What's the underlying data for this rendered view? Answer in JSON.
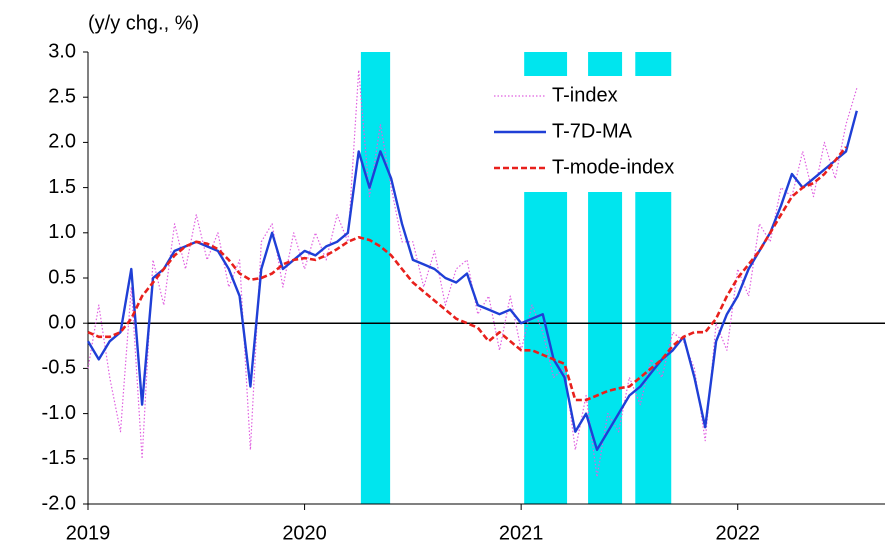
{
  "chart_data": {
    "type": "line",
    "y_axis_label": "(y/y chg., %)",
    "x": [
      2019.0,
      2019.05,
      2019.1,
      2019.15,
      2019.2,
      2019.25,
      2019.3,
      2019.35,
      2019.4,
      2019.45,
      2019.5,
      2019.55,
      2019.6,
      2019.65,
      2019.7,
      2019.75,
      2019.8,
      2019.85,
      2019.9,
      2019.95,
      2020.0,
      2020.05,
      2020.1,
      2020.15,
      2020.2,
      2020.25,
      2020.3,
      2020.35,
      2020.4,
      2020.45,
      2020.5,
      2020.55,
      2020.6,
      2020.65,
      2020.7,
      2020.75,
      2020.8,
      2020.85,
      2020.9,
      2020.95,
      2021.0,
      2021.05,
      2021.1,
      2021.15,
      2021.2,
      2021.25,
      2021.3,
      2021.35,
      2021.4,
      2021.45,
      2021.5,
      2021.55,
      2021.6,
      2021.65,
      2021.7,
      2021.75,
      2021.8,
      2021.85,
      2021.9,
      2021.95,
      2022.0,
      2022.05,
      2022.1,
      2022.15,
      2022.2,
      2022.25,
      2022.3,
      2022.35,
      2022.4,
      2022.45,
      2022.5,
      2022.55
    ],
    "series": [
      {
        "name": "T-index",
        "color": "#e060e0",
        "style": "dotted",
        "values": [
          -0.5,
          0.2,
          -0.6,
          -1.2,
          0.4,
          -1.5,
          0.7,
          0.2,
          1.1,
          0.6,
          1.2,
          0.7,
          1.0,
          0.4,
          0.7,
          -1.4,
          0.9,
          1.1,
          0.4,
          1.0,
          0.6,
          1.0,
          0.7,
          1.2,
          0.9,
          2.8,
          1.4,
          2.2,
          1.5,
          0.9,
          0.9,
          0.4,
          0.8,
          0.2,
          0.6,
          0.7,
          0.1,
          0.3,
          -0.3,
          0.3,
          -0.3,
          0.2,
          -0.1,
          -0.6,
          -0.5,
          -1.4,
          -0.8,
          -1.7,
          -1.0,
          -1.2,
          -0.6,
          -0.9,
          -0.4,
          -0.6,
          -0.1,
          -0.2,
          -0.5,
          -1.3,
          0.0,
          -0.3,
          0.6,
          0.3,
          1.1,
          0.9,
          1.5,
          1.4,
          1.9,
          1.4,
          2.0,
          1.6,
          2.2,
          2.6
        ]
      },
      {
        "name": "T-7D-MA",
        "color": "#1f3fd6",
        "style": "solid",
        "values": [
          -0.2,
          -0.4,
          -0.2,
          -0.1,
          0.6,
          -0.9,
          0.5,
          0.6,
          0.8,
          0.85,
          0.9,
          0.85,
          0.8,
          0.6,
          0.3,
          -0.7,
          0.6,
          1.0,
          0.6,
          0.7,
          0.8,
          0.75,
          0.85,
          0.9,
          1.0,
          1.9,
          1.5,
          1.9,
          1.6,
          1.1,
          0.7,
          0.65,
          0.6,
          0.5,
          0.45,
          0.55,
          0.2,
          0.15,
          0.1,
          0.15,
          0.0,
          0.05,
          0.1,
          -0.4,
          -0.6,
          -1.2,
          -1.0,
          -1.4,
          -1.2,
          -1.0,
          -0.8,
          -0.7,
          -0.55,
          -0.4,
          -0.3,
          -0.15,
          -0.6,
          -1.15,
          -0.2,
          0.1,
          0.3,
          0.6,
          0.8,
          1.0,
          1.3,
          1.65,
          1.5,
          1.6,
          1.7,
          1.8,
          1.9,
          2.35
        ]
      },
      {
        "name": "T-mode-index",
        "color": "#e8201c",
        "style": "dashed",
        "values": [
          -0.1,
          -0.15,
          -0.15,
          -0.1,
          0.05,
          0.3,
          0.45,
          0.6,
          0.75,
          0.85,
          0.9,
          0.88,
          0.82,
          0.7,
          0.55,
          0.48,
          0.5,
          0.55,
          0.65,
          0.7,
          0.72,
          0.7,
          0.75,
          0.82,
          0.9,
          0.95,
          0.92,
          0.85,
          0.75,
          0.6,
          0.45,
          0.35,
          0.25,
          0.15,
          0.05,
          0.0,
          -0.05,
          -0.2,
          -0.1,
          -0.2,
          -0.3,
          -0.3,
          -0.35,
          -0.4,
          -0.45,
          -0.85,
          -0.85,
          -0.8,
          -0.75,
          -0.72,
          -0.7,
          -0.6,
          -0.5,
          -0.4,
          -0.25,
          -0.15,
          -0.1,
          -0.1,
          0.05,
          0.3,
          0.5,
          0.65,
          0.8,
          1.0,
          1.2,
          1.4,
          1.5,
          1.55,
          1.65,
          1.8,
          1.95,
          null
        ]
      }
    ],
    "shaded_periods": [
      [
        2020.26,
        2020.395
      ],
      [
        2021.014,
        2021.212
      ],
      [
        2021.309,
        2021.466
      ],
      [
        2021.527,
        2021.693
      ]
    ],
    "shade_color": "#00e5ee",
    "xlim": [
      2019,
      2022.68
    ],
    "xticks": [
      2019,
      2020,
      2021,
      2022
    ],
    "ylim": [
      -2,
      3
    ],
    "yticks": [
      {
        "value": -2,
        "label": "-2.0"
      },
      -1.5,
      {
        "value": -1,
        "label": "-1.0"
      },
      -0.5,
      {
        "value": 0,
        "label": "0.0"
      },
      0.5,
      {
        "value": 1,
        "label": "1.0"
      },
      1.5,
      {
        "value": 2,
        "label": "2.0"
      },
      2.5,
      {
        "value": 3,
        "label": "3.0"
      }
    ],
    "zero_line": true,
    "legend_position": "upper right"
  }
}
